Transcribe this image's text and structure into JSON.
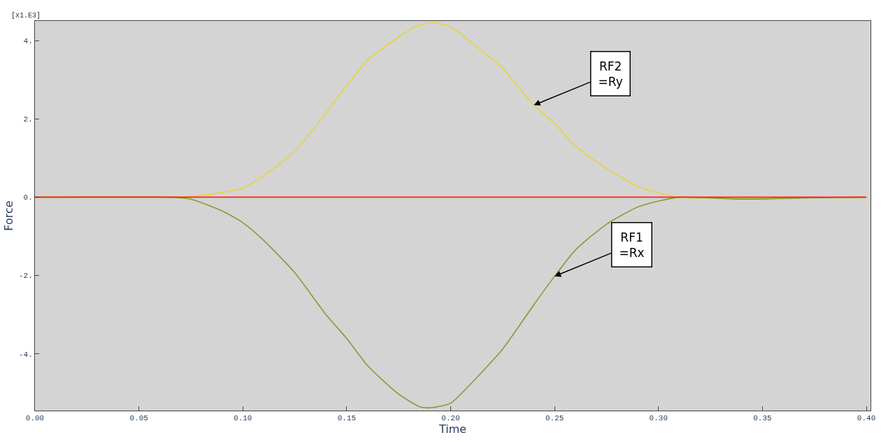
{
  "chart_data": {
    "type": "line",
    "xlabel": "Time",
    "ylabel": "Force",
    "series": [
      {
        "color": "#e6d43c",
        "x": [
          0.0,
          0.065,
          0.075,
          0.09,
          0.1,
          0.11,
          0.125,
          0.14,
          0.15,
          0.16,
          0.175,
          0.185,
          0.193,
          0.2,
          0.21,
          0.225,
          0.24,
          0.25,
          0.26,
          0.275,
          0.29,
          0.3,
          0.31,
          0.4
        ],
        "values": [
          0,
          0,
          0.02,
          0.12,
          0.23,
          0.55,
          1.17,
          2.15,
          2.85,
          3.5,
          4.09,
          4.4,
          4.45,
          4.35,
          3.95,
          3.29,
          2.35,
          1.88,
          1.3,
          0.73,
          0.28,
          0.11,
          0,
          0
        ]
      },
      {
        "color": "#8a9a30",
        "x": [
          0.0,
          0.065,
          0.075,
          0.09,
          0.1,
          0.11,
          0.125,
          0.14,
          0.15,
          0.16,
          0.175,
          0.185,
          0.19,
          0.2,
          0.21,
          0.225,
          0.24,
          0.25,
          0.26,
          0.275,
          0.29,
          0.3,
          0.31,
          0.34,
          0.37,
          0.4
        ],
        "values": [
          0,
          0,
          -0.05,
          -0.35,
          -0.65,
          -1.1,
          -1.93,
          -3.0,
          -3.61,
          -4.3,
          -5.03,
          -5.35,
          -5.38,
          -5.26,
          -4.75,
          -3.88,
          -2.75,
          -2.02,
          -1.35,
          -0.69,
          -0.25,
          -0.1,
          0,
          -0.05,
          -0.02,
          0
        ]
      },
      {
        "color": "#ff2010",
        "x": [
          0.0,
          0.4
        ],
        "values": [
          0,
          0
        ]
      }
    ],
    "xlim": [
      0.0,
      0.402
    ],
    "ylim": [
      -5.45,
      4.5
    ],
    "xticks": [
      {
        "value": 0,
        "label": "0.00"
      },
      {
        "value": 0.05,
        "label": "0.05"
      },
      {
        "value": 0.1,
        "label": "0.10"
      },
      {
        "value": 0.15,
        "label": "0.15"
      },
      {
        "value": 0.2,
        "label": "0.20"
      },
      {
        "value": 0.25,
        "label": "0.25"
      },
      {
        "value": 0.3,
        "label": "0.30"
      },
      {
        "value": 0.35,
        "label": "0.35"
      },
      {
        "value": 0.4,
        "label": "0.40"
      }
    ],
    "yticks": [
      {
        "value": -4,
        "label": "-4."
      },
      {
        "value": -2,
        "label": "-2."
      },
      {
        "value": 0,
        "label": "0."
      },
      {
        "value": 2,
        "label": "2."
      },
      {
        "value": 4,
        "label": "4."
      }
    ],
    "annotations": [
      "[x1.E3]",
      {
        "text": "RF2\n=Ry",
        "x": 0.24,
        "y": 2.35
      },
      {
        "text": "RF1\n=Rx",
        "x": 0.25,
        "y": -2.02
      }
    ],
    "grid": false,
    "marker": "none",
    "line_style": "solid"
  }
}
